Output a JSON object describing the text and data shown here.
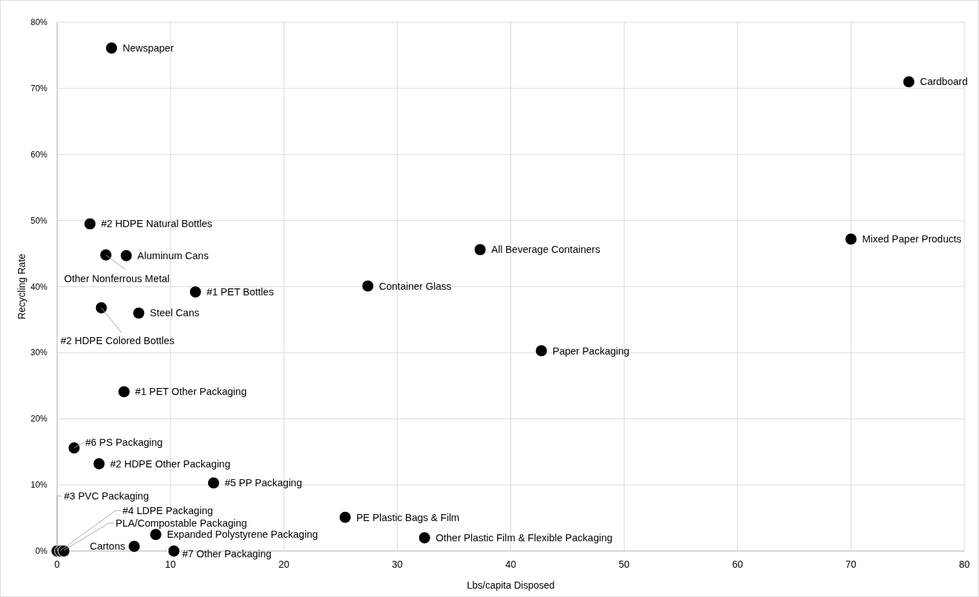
{
  "chart_data": {
    "type": "scatter",
    "xlabel": "Lbs/capita Disposed",
    "ylabel": "Recycling Rate",
    "xlim": [
      0,
      80
    ],
    "xticks": [
      0,
      10,
      20,
      30,
      40,
      50,
      60,
      70,
      80
    ],
    "ylim": [
      0,
      80
    ],
    "yticks": [
      {
        "value": 0,
        "label": "0%"
      },
      {
        "value": 10,
        "label": "10%"
      },
      {
        "value": 20,
        "label": "20%"
      },
      {
        "value": 30,
        "label": "30%"
      },
      {
        "value": 40,
        "label": "40%"
      },
      {
        "value": 50,
        "label": "50%"
      },
      {
        "value": 60,
        "label": "60%"
      },
      {
        "value": 70,
        "label": "70%"
      },
      {
        "value": 80,
        "label": "80%"
      }
    ],
    "grid": true,
    "marker": "circle",
    "series": [
      {
        "color": "#000000",
        "x": [
          4.8,
          75.1,
          2.9,
          4.3,
          6.1,
          70.0,
          37.3,
          12.2,
          27.4,
          3.9,
          7.2,
          42.7,
          5.9,
          1.5,
          3.7,
          13.8,
          25.4,
          32.4,
          8.7,
          6.8,
          10.3,
          0,
          0.3,
          0.6
        ],
        "values": [
          76.1,
          71.0,
          49.5,
          44.8,
          44.7,
          47.2,
          45.6,
          39.2,
          40.1,
          36.8,
          36.0,
          30.3,
          24.1,
          15.6,
          13.2,
          10.3,
          5.1,
          2.0,
          2.5,
          0.7,
          0,
          0,
          0,
          0
        ]
      }
    ],
    "annotations": [
      {
        "text": "Newspaper",
        "x": 4.8,
        "y": 76.1
      },
      {
        "text": "Cardboard",
        "x": 75.1,
        "y": 71.0
      },
      {
        "text": "#2 HDPE Natural Bottles",
        "x": 2.9,
        "y": 49.5
      },
      {
        "text": "Other Nonferrous Metal",
        "x": 4.3,
        "y": 44.8
      },
      {
        "text": "Aluminum Cans",
        "x": 6.1,
        "y": 44.7
      },
      {
        "text": "Mixed Paper Products",
        "x": 70.0,
        "y": 47.2
      },
      {
        "text": "All Beverage Containers",
        "x": 37.3,
        "y": 45.6
      },
      {
        "text": "#1 PET Bottles",
        "x": 12.2,
        "y": 39.2
      },
      {
        "text": "Container Glass",
        "x": 27.4,
        "y": 40.1
      },
      {
        "text": "#2 HDPE Colored Bottles",
        "x": 3.9,
        "y": 36.8
      },
      {
        "text": "Steel Cans",
        "x": 7.2,
        "y": 36.0
      },
      {
        "text": "Paper Packaging",
        "x": 42.7,
        "y": 30.3
      },
      {
        "text": "#1 PET Other Packaging",
        "x": 5.9,
        "y": 24.1
      },
      {
        "text": "#6 PS Packaging",
        "x": 1.5,
        "y": 15.6
      },
      {
        "text": "#2 HDPE Other Packaging",
        "x": 3.7,
        "y": 13.2
      },
      {
        "text": "#5 PP Packaging",
        "x": 13.8,
        "y": 10.3
      },
      {
        "text": "PE Plastic Bags & Film",
        "x": 25.4,
        "y": 5.1
      },
      {
        "text": "Other Plastic Film & Flexible Packaging",
        "x": 32.4,
        "y": 2.0
      },
      {
        "text": "Expanded Polystyrene Packaging",
        "x": 8.7,
        "y": 2.5
      },
      {
        "text": "Cartons",
        "x": 6.8,
        "y": 0.7
      },
      {
        "text": "#7 Other Packaging",
        "x": 10.3,
        "y": 0
      },
      {
        "text": "#3 PVC Packaging",
        "x": 0,
        "y": 0
      },
      {
        "text": "#4 LDPE Packaging",
        "x": 0.3,
        "y": 0
      },
      {
        "text": "PLA/Compostable Packaging",
        "x": 0.6,
        "y": 0
      }
    ]
  }
}
